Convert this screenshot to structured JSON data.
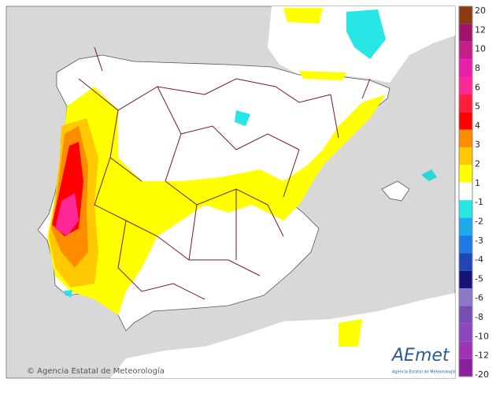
{
  "legend": {
    "labels": [
      20,
      12,
      10,
      8,
      6,
      5,
      4,
      3,
      2,
      1,
      -1,
      -2,
      -3,
      -4,
      -5,
      -6,
      -8,
      -10,
      -12,
      -20
    ],
    "colors": [
      "#8b3c0f",
      "#a0146e",
      "#c81e8c",
      "#e61eaa",
      "#ff2896",
      "#ff1e3c",
      "#ff0000",
      "#ff8c00",
      "#ffc800",
      "#ffff00",
      "#ffffff",
      "#28e6e6",
      "#1eaaf0",
      "#1e78e6",
      "#1e46b4",
      "#14147a",
      "#8c78c8",
      "#7850b4",
      "#8c46be",
      "#a032b4",
      "#8c1ea0"
    ]
  },
  "credit": "© Agencia Estatal de Meteorología",
  "logo": {
    "text": "AEmet",
    "subtitle": "Agencia Estatal de Meteorología"
  }
}
